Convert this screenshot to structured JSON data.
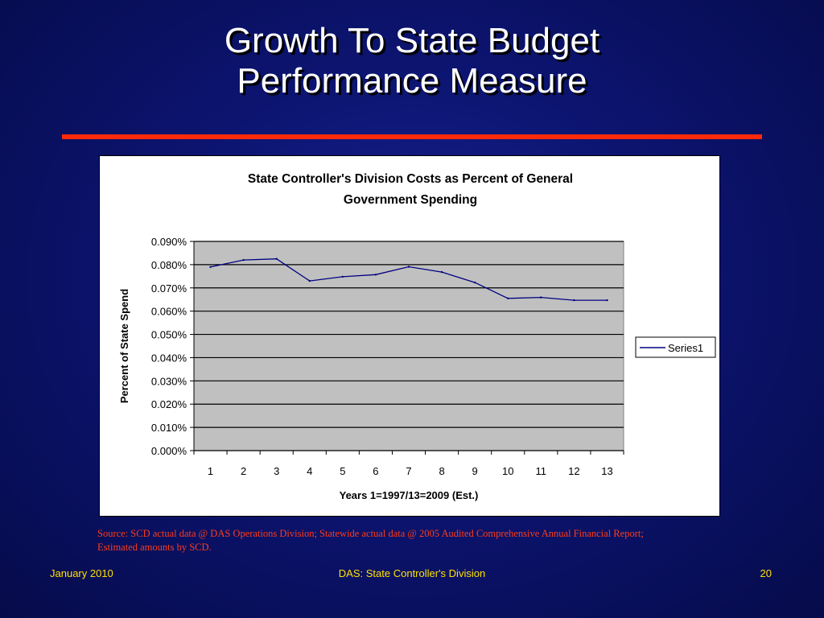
{
  "slide": {
    "title_lines": [
      "Growth To State Budget",
      "Performance Measure"
    ],
    "source_lines": [
      "Source: SCD actual data @ DAS Operations Division;  Statewide actual data @ 2005 Audited Comprehensive Annual Financial Report;",
      " Estimated amounts by SCD."
    ],
    "footer": {
      "left": "January 2010",
      "center": "DAS:  State Controller's Division",
      "right": "20"
    }
  },
  "colors": {
    "background": "#0c1470",
    "title_rule": "#ff2a0a",
    "source_text": "#ff3b1a",
    "footer_text": "#ffe000",
    "plot_area": "#c0c0c0",
    "series_line": "#000080"
  },
  "chart_data": {
    "type": "line",
    "title_lines": [
      "State Controller's Division Costs as Percent of General",
      "Government Spending"
    ],
    "xlabel": "Years 1=1997/13=2009 (Est.)",
    "ylabel": "Percent of State Spend",
    "categories": [
      "1",
      "2",
      "3",
      "4",
      "5",
      "6",
      "7",
      "8",
      "9",
      "10",
      "11",
      "12",
      "13"
    ],
    "series": [
      {
        "name": "Series1",
        "color": "#000080",
        "values": [
          0.079,
          0.082,
          0.0825,
          0.073,
          0.0748,
          0.0757,
          0.0791,
          0.0768,
          0.0723,
          0.0655,
          0.0659,
          0.0647,
          0.0647
        ]
      }
    ],
    "ylim": [
      0,
      0.09
    ],
    "y_ticks": [
      "0.000%",
      "0.010%",
      "0.020%",
      "0.030%",
      "0.040%",
      "0.050%",
      "0.060%",
      "0.070%",
      "0.080%",
      "0.090%"
    ],
    "grid": true,
    "legend_position": "right"
  }
}
